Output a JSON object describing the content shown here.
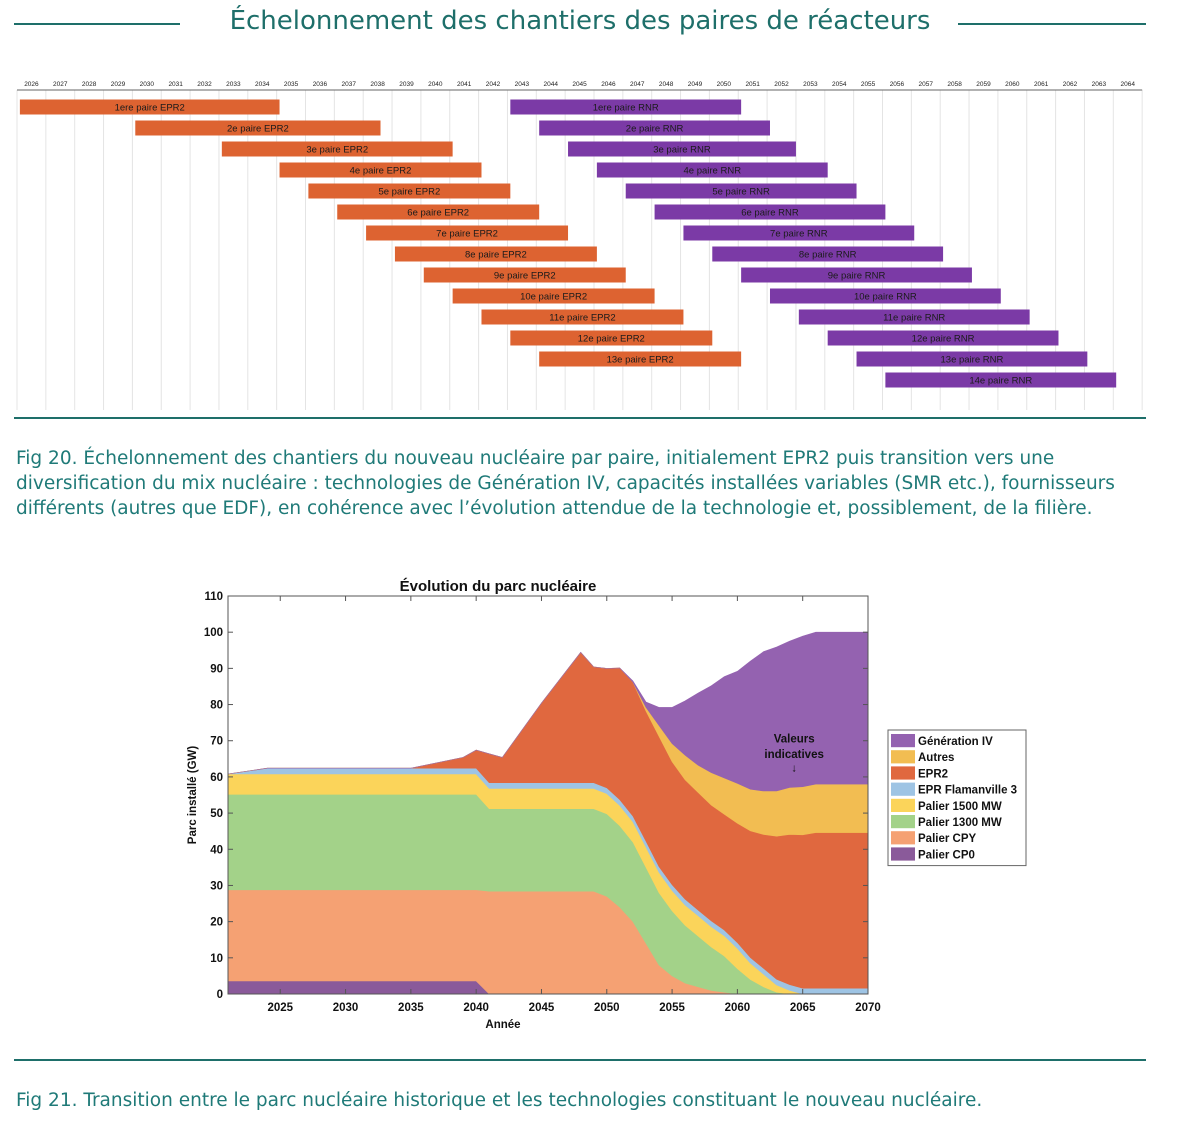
{
  "page": {
    "title": "Échelonnement des chantiers des paires de réacteurs",
    "caption1": "Fig 20. Échelonnement des chantiers du nouveau nucléaire par paire, initialement EPR2 puis transition vers une diversification du mix nucléaire : technologies de Génération IV, capacités installées variables (SMR etc.), fournisseurs différents (autres que EDF), en cohérence avec l’évolution attendue de la technologie et, possiblement, de la filière.",
    "caption2": "Fig 21. Transition entre le parc nucléaire historique et les technologies constituant le nouveau nucléaire."
  },
  "chart_data": [
    {
      "type": "gantt",
      "title": "Échelonnement des chantiers des paires de réacteurs",
      "years": [
        2026,
        2027,
        2028,
        2029,
        2030,
        2031,
        2032,
        2033,
        2034,
        2035,
        2036,
        2037,
        2038,
        2039,
        2040,
        2041,
        2042,
        2043,
        2044,
        2045,
        2046,
        2047,
        2048,
        2049,
        2050,
        2051,
        2052,
        2053,
        2054,
        2055,
        2056,
        2057,
        2058,
        2059,
        2060,
        2061,
        2062,
        2063,
        2064
      ],
      "colors": {
        "EPR2": "#dd6331",
        "RNR": "#7b3aa6"
      },
      "tasks": [
        {
          "label": "1ere paire EPR2",
          "group": "EPR2",
          "start": 2026.1,
          "end": 2035.1,
          "row": 0
        },
        {
          "label": "2e paire EPR2",
          "group": "EPR2",
          "start": 2030.1,
          "end": 2038.6,
          "row": 1
        },
        {
          "label": "3e paire EPR2",
          "group": "EPR2",
          "start": 2033.1,
          "end": 2041.1,
          "row": 2
        },
        {
          "label": "4e paire EPR2",
          "group": "EPR2",
          "start": 2035.1,
          "end": 2042.1,
          "row": 3
        },
        {
          "label": "5e paire EPR2",
          "group": "EPR2",
          "start": 2036.1,
          "end": 2043.1,
          "row": 4
        },
        {
          "label": "6e paire EPR2",
          "group": "EPR2",
          "start": 2037.1,
          "end": 2044.1,
          "row": 5
        },
        {
          "label": "7e paire EPR2",
          "group": "EPR2",
          "start": 2038.1,
          "end": 2045.1,
          "row": 6
        },
        {
          "label": "8e paire EPR2",
          "group": "EPR2",
          "start": 2039.1,
          "end": 2046.1,
          "row": 7
        },
        {
          "label": "9e paire EPR2",
          "group": "EPR2",
          "start": 2040.1,
          "end": 2047.1,
          "row": 8
        },
        {
          "label": "10e paire EPR2",
          "group": "EPR2",
          "start": 2041.1,
          "end": 2048.1,
          "row": 9
        },
        {
          "label": "11e paire EPR2",
          "group": "EPR2",
          "start": 2042.1,
          "end": 2049.1,
          "row": 10
        },
        {
          "label": "12e paire EPR2",
          "group": "EPR2",
          "start": 2043.1,
          "end": 2050.1,
          "row": 11
        },
        {
          "label": "13e paire EPR2",
          "group": "EPR2",
          "start": 2044.1,
          "end": 2051.1,
          "row": 12
        },
        {
          "label": "1ere paire RNR",
          "group": "RNR",
          "start": 2043.1,
          "end": 2051.1,
          "row": 0
        },
        {
          "label": "2e paire RNR",
          "group": "RNR",
          "start": 2044.1,
          "end": 2052.1,
          "row": 1
        },
        {
          "label": "3e paire RNR",
          "group": "RNR",
          "start": 2045.1,
          "end": 2053.0,
          "row": 2
        },
        {
          "label": "4e paire RNR",
          "group": "RNR",
          "start": 2046.1,
          "end": 2054.1,
          "row": 3
        },
        {
          "label": "5e paire RNR",
          "group": "RNR",
          "start": 2047.1,
          "end": 2055.1,
          "row": 4
        },
        {
          "label": "6e paire RNR",
          "group": "RNR",
          "start": 2048.1,
          "end": 2056.1,
          "row": 5
        },
        {
          "label": "7e paire RNR",
          "group": "RNR",
          "start": 2049.1,
          "end": 2057.1,
          "row": 6
        },
        {
          "label": "8e paire RNR",
          "group": "RNR",
          "start": 2050.1,
          "end": 2058.1,
          "row": 7
        },
        {
          "label": "9e paire RNR",
          "group": "RNR",
          "start": 2051.1,
          "end": 2059.1,
          "row": 8
        },
        {
          "label": "10e paire RNR",
          "group": "RNR",
          "start": 2052.1,
          "end": 2060.1,
          "row": 9
        },
        {
          "label": "11e paire RNR",
          "group": "RNR",
          "start": 2053.1,
          "end": 2061.1,
          "row": 10
        },
        {
          "label": "12e paire RNR",
          "group": "RNR",
          "start": 2054.1,
          "end": 2062.1,
          "row": 11
        },
        {
          "label": "13e paire RNR",
          "group": "RNR",
          "start": 2055.1,
          "end": 2063.1,
          "row": 12
        },
        {
          "label": "14e paire RNR",
          "group": "RNR",
          "start": 2056.1,
          "end": 2064.1,
          "row": 13
        }
      ]
    },
    {
      "type": "area",
      "title": "Évolution du parc nucléaire",
      "xlabel": "Année",
      "ylabel": "Parc installé (GW)",
      "xlim": [
        2021,
        2070
      ],
      "ylim": [
        0,
        110
      ],
      "xticks": [
        2025,
        2030,
        2035,
        2040,
        2045,
        2050,
        2055,
        2060,
        2065,
        2070
      ],
      "yticks": [
        0,
        10,
        20,
        30,
        40,
        50,
        60,
        70,
        80,
        90,
        100,
        110
      ],
      "x": [
        2021,
        2024,
        2025,
        2035,
        2039,
        2040,
        2041,
        2042,
        2045,
        2048,
        2049,
        2050,
        2051,
        2052,
        2053,
        2054,
        2055,
        2056,
        2057,
        2058,
        2059,
        2060,
        2061,
        2062,
        2063,
        2064,
        2065,
        2066,
        2067,
        2068,
        2069,
        2070
      ],
      "series": [
        {
          "name": "Palier CP0",
          "color": "#8a5a9a",
          "values": [
            3.6,
            3.6,
            3.6,
            3.6,
            3.6,
            3.6,
            0,
            0,
            0,
            0,
            0,
            0,
            0,
            0,
            0,
            0,
            0,
            0,
            0,
            0,
            0,
            0,
            0,
            0,
            0,
            0,
            0,
            0,
            0,
            0,
            0,
            0
          ]
        },
        {
          "name": "Palier CPY",
          "color": "#f5a173",
          "values": [
            25.2,
            25.2,
            25.2,
            25.2,
            25.2,
            25.2,
            28.4,
            28.4,
            28.4,
            28.4,
            28.4,
            27,
            24,
            20,
            14,
            8,
            5,
            3,
            2,
            1,
            0.5,
            0,
            0,
            0,
            0,
            0,
            0,
            0,
            0,
            0,
            0,
            0
          ]
        },
        {
          "name": "Palier 1300 MW",
          "color": "#a3d289",
          "values": [
            26.4,
            26.4,
            26.4,
            26.4,
            26.4,
            26.4,
            22.8,
            22.8,
            22.8,
            22.8,
            22.8,
            22.8,
            22.5,
            22,
            21,
            20,
            18,
            16,
            14,
            12,
            10,
            7,
            4,
            2,
            0.5,
            0,
            0,
            0,
            0,
            0,
            0,
            0
          ]
        },
        {
          "name": "Palier 1500 MW",
          "color": "#fbd45a",
          "values": [
            5.6,
            5.6,
            5.6,
            5.6,
            5.6,
            5.6,
            5.6,
            5.6,
            5.6,
            5.6,
            5.6,
            5.6,
            5.6,
            5.6,
            5.6,
            5.6,
            5.6,
            5.6,
            5.6,
            5.6,
            5.6,
            5.6,
            4.5,
            3.5,
            2,
            1,
            0,
            0,
            0,
            0,
            0,
            0
          ]
        },
        {
          "name": "EPR Flamanville 3",
          "color": "#9ec4e4",
          "values": [
            0,
            1.6,
            1.6,
            1.6,
            1.6,
            1.6,
            1.6,
            1.6,
            1.6,
            1.6,
            1.6,
            1.6,
            1.6,
            1.6,
            1.6,
            1.6,
            1.6,
            1.6,
            1.6,
            1.6,
            1.6,
            1.6,
            1.6,
            1.6,
            1.6,
            1.6,
            1.6,
            1.6,
            1.6,
            1.6,
            1.6,
            1.6
          ]
        },
        {
          "name": "EPR2",
          "color": "#e0683f",
          "values": [
            0,
            0,
            0,
            0,
            3,
            5,
            8,
            7,
            22,
            36,
            32,
            33,
            36.4,
            37,
            36,
            36,
            34,
            33,
            32.5,
            32,
            32,
            33,
            35,
            37,
            39.5,
            41.5,
            42.4,
            43,
            43,
            43,
            43,
            43
          ]
        },
        {
          "name": "Autres",
          "color": "#f2bd52",
          "values": [
            0,
            0,
            0,
            0,
            0,
            0,
            0,
            0,
            0,
            0,
            0,
            0,
            0,
            0,
            1,
            3,
            5,
            6.8,
            7.5,
            9,
            10,
            11,
            11.5,
            12,
            12.5,
            13,
            13.3,
            13.4,
            13.4,
            13.4,
            13.4,
            13.4
          ]
        },
        {
          "name": "Génération IV",
          "color": "#9462b0",
          "values": [
            0,
            0,
            0,
            0,
            0,
            0,
            0,
            0,
            0,
            0,
            0,
            0,
            0,
            0.3,
            1.5,
            5,
            10,
            15,
            20,
            24,
            28,
            31,
            35.4,
            38.5,
            39.8,
            40.4,
            41.6,
            42,
            42,
            42,
            42,
            42
          ]
        }
      ],
      "legend": [
        "Génération IV",
        "Autres",
        "EPR2",
        "EPR Flamanville 3",
        "Palier 1500 MW",
        "Palier 1300 MW",
        "Palier CPY",
        "Palier CP0"
      ],
      "annotation": {
        "text_line1": "Valeurs",
        "text_line2": "indicatives",
        "arrow": "↓",
        "x": 2064.5,
        "y": 58
      }
    }
  ]
}
